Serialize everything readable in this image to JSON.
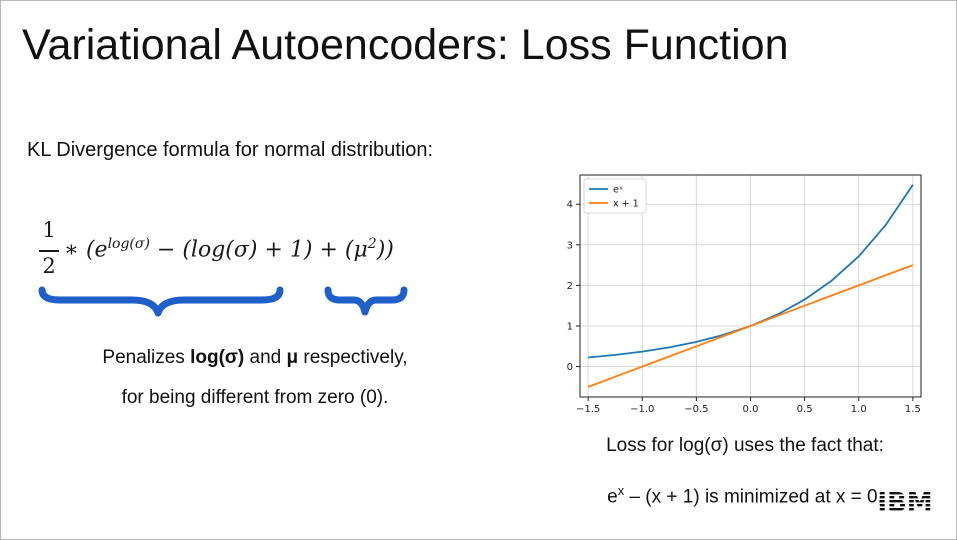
{
  "slide": {
    "title": "Variational Autoencoders: Loss Function",
    "kl_label": "KL Divergence formula for normal distribution:",
    "formula": {
      "numerator": "1",
      "denominator": "2",
      "part_mult": "∗ (",
      "part_e": "e",
      "part_exp": "log(σ)",
      "part_rest": " − (log(σ) + 1) + (μ",
      "part_sq": "2",
      "part_end": "))"
    },
    "penalty": {
      "line1_pre": "Penalizes ",
      "line1_b1": "log(σ)",
      "line1_mid": " and ",
      "line1_b2": "μ",
      "line1_post": " respectively,",
      "line2": "for being different from zero (0)."
    },
    "caption": {
      "line1": "Loss for log(σ) uses the fact that:",
      "line2_pre": "e",
      "line2_sup": "x",
      "line2_post": " – (x + 1) is minimized at x = 0."
    },
    "brace_color": "#1f5fc8",
    "logo": "IBM"
  },
  "chart_data": {
    "type": "line",
    "x": [
      -1.5,
      -1.25,
      -1.0,
      -0.75,
      -0.5,
      -0.25,
      0.0,
      0.25,
      0.5,
      0.75,
      1.0,
      1.25,
      1.5
    ],
    "series": [
      {
        "name": "eˣ",
        "color": "#1f77b4",
        "values": [
          0.223,
          0.287,
          0.368,
          0.472,
          0.607,
          0.779,
          1.0,
          1.284,
          1.649,
          2.117,
          2.718,
          3.49,
          4.482
        ]
      },
      {
        "name": "x + 1",
        "color": "#ff7f0e",
        "values": [
          -0.5,
          -0.25,
          0.0,
          0.25,
          0.5,
          0.75,
          1.0,
          1.25,
          1.5,
          1.75,
          2.0,
          2.25,
          2.5
        ]
      }
    ],
    "xticks": [
      "-1.5",
      "-1.0",
      "-0.5",
      "0.0",
      "0.5",
      "1.0",
      "1.5"
    ],
    "yticks": [
      "0",
      "1",
      "2",
      "3",
      "4"
    ],
    "xlim": [
      -1.575,
      1.575
    ],
    "ylim": [
      -0.75,
      4.72
    ],
    "grid": true,
    "legend": "top-left"
  }
}
